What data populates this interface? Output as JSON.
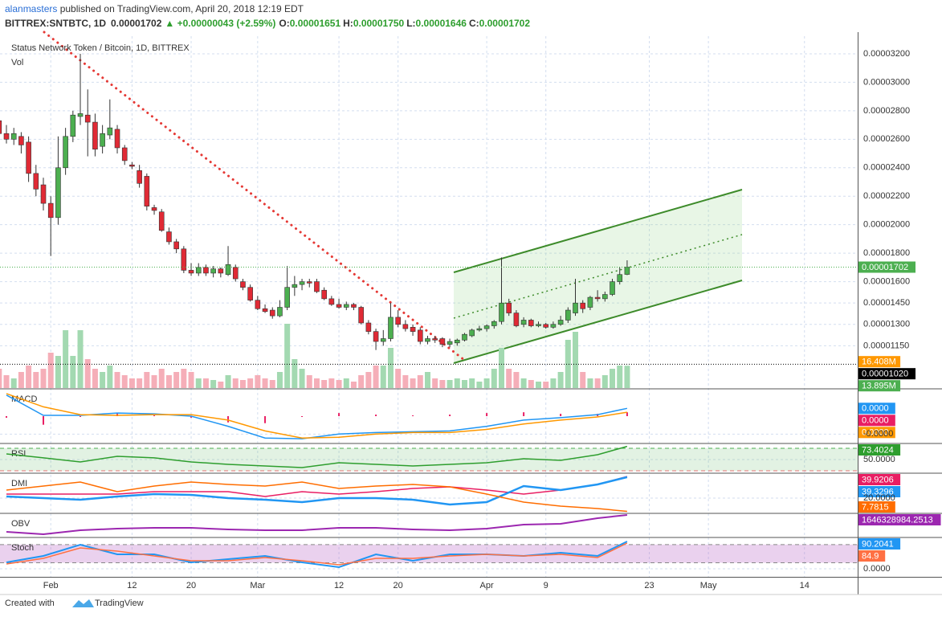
{
  "header": {
    "author": "alanmasters",
    "published": " published on TradingView.com, April 20, 2018 12:19 EDT",
    "symbol": "BITTREX:SNTBTC, 1D",
    "price": "0.00001702",
    "change": "▲ +0.00000043 (+2.59%)",
    "ohlc": [
      {
        "label": "O:",
        "value": "0.00001651"
      },
      {
        "label": "H:",
        "value": "0.00001750"
      },
      {
        "label": "L:",
        "value": "0.00001646"
      },
      {
        "label": "C:",
        "value": "0.00001702"
      }
    ]
  },
  "footer": {
    "text": "Created with",
    "brand": "TradingView"
  },
  "chart_data": [
    {
      "type": "candlestick",
      "title": "Status Network Token / Bitcoin, 1D, BITTREX",
      "up_color": "#4caf50",
      "down_color": "#e02a35",
      "x": [
        -7,
        -6,
        -5,
        -4,
        -3,
        -2,
        -1,
        0,
        1,
        2,
        3,
        4,
        5,
        6,
        7,
        8,
        9,
        10,
        11,
        12,
        13,
        14,
        15,
        16,
        17,
        18,
        19,
        20,
        21,
        22,
        23,
        24,
        25,
        26,
        27,
        28,
        29,
        30,
        31,
        32,
        33,
        34,
        35,
        36,
        37,
        38,
        39,
        40,
        41,
        42,
        43,
        44,
        45,
        46,
        47,
        48,
        49,
        50,
        51,
        52,
        53,
        54,
        55,
        56,
        57,
        58,
        59,
        60,
        61,
        62,
        63,
        64,
        65,
        66,
        67,
        68,
        69,
        70,
        71,
        72,
        73,
        74,
        75,
        76,
        77,
        78
      ],
      "open": [
        2.73e-05,
        2.64e-05,
        2.6e-05,
        2.62e-05,
        2.58e-05,
        2.36e-05,
        2.28e-05,
        2.15e-05,
        2.05e-05,
        2.4e-05,
        2.62e-05,
        2.76e-05,
        2.77e-05,
        2.72e-05,
        2.55e-05,
        2.63e-05,
        2.67e-05,
        2.54e-05,
        2.42e-05,
        2.38e-05,
        2.34e-05,
        2.12e-05,
        2.09e-05,
        1.95e-05,
        1.88e-05,
        1.83e-05,
        1.68e-05,
        1.66e-05,
        1.7e-05,
        1.66e-05,
        1.69e-05,
        1.65e-05,
        1.7e-05,
        1.6e-05,
        1.56e-05,
        1.47e-05,
        1.41e-05,
        1.4e-05,
        1.36e-05,
        1.42e-05,
        1.56e-05,
        1.58e-05,
        1.6e-05,
        1.6e-05,
        1.54e-05,
        1.48e-05,
        1.44e-05,
        1.42e-05,
        1.44e-05,
        1.42e-05,
        1.31e-05,
        1.25e-05,
        1.18e-05,
        1.2e-05,
        1.35e-05,
        1.3e-05,
        1.28e-05,
        1.26e-05,
        1.18e-05,
        1.2e-05,
        1.2e-05,
        1.16e-05,
        1.17e-05,
        1.19e-05,
        1.22e-05,
        1.26e-05,
        1.27e-05,
        1.29e-05,
        1.32e-05,
        1.45e-05,
        1.38e-05,
        1.3e-05,
        1.33e-05,
        1.29e-05,
        1.3e-05,
        1.28e-05,
        1.3e-05,
        1.33e-05,
        1.38e-05,
        1.45e-05,
        1.42e-05,
        1.49e-05,
        1.48e-05,
        1.51e-05,
        1.6e-05,
        1.651e-05
      ],
      "high": [
        2.79e-05,
        2.7e-05,
        2.68e-05,
        2.65e-05,
        2.62e-05,
        2.42e-05,
        2.33e-05,
        2.2e-05,
        2.62e-05,
        2.68e-05,
        2.8e-05,
        3.2e-05,
        2.95e-05,
        2.78e-05,
        2.7e-05,
        2.88e-05,
        2.7e-05,
        2.56e-05,
        2.44e-05,
        2.42e-05,
        2.36e-05,
        2.14e-05,
        2.11e-05,
        1.98e-05,
        1.9e-05,
        1.85e-05,
        1.73e-05,
        1.73e-05,
        1.72e-05,
        1.71e-05,
        1.7e-05,
        1.85e-05,
        1.72e-05,
        1.62e-05,
        1.58e-05,
        1.5e-05,
        1.44e-05,
        1.42e-05,
        1.47e-05,
        1.71e-05,
        1.64e-05,
        1.62e-05,
        1.62e-05,
        1.62e-05,
        1.56e-05,
        1.5e-05,
        1.48e-05,
        1.46e-05,
        1.45e-05,
        1.43e-05,
        1.33e-05,
        1.27e-05,
        1.26e-05,
        1.45e-05,
        1.4e-05,
        1.33e-05,
        1.3e-05,
        1.28e-05,
        1.22e-05,
        1.22e-05,
        1.21e-05,
        1.2e-05,
        1.2e-05,
        1.24e-05,
        1.27e-05,
        1.29e-05,
        1.3e-05,
        1.33e-05,
        1.77e-05,
        1.48e-05,
        1.4e-05,
        1.35e-05,
        1.34e-05,
        1.32e-05,
        1.31e-05,
        1.32e-05,
        1.36e-05,
        1.42e-05,
        1.62e-05,
        1.47e-05,
        1.5e-05,
        1.54e-05,
        1.53e-05,
        1.62e-05,
        1.7e-05,
        1.75e-05
      ],
      "low": [
        2.54e-05,
        2.57e-05,
        2.56e-05,
        2.5e-05,
        2.3e-05,
        2.2e-05,
        2.1e-05,
        1.78e-05,
        2e-05,
        2.35e-05,
        2.58e-05,
        2.7e-05,
        2.48e-05,
        2.48e-05,
        2.5e-05,
        2.6e-05,
        2.5e-05,
        2.42e-05,
        2.39e-05,
        2.26e-05,
        2.1e-05,
        2.07e-05,
        1.95e-05,
        1.86e-05,
        1.8e-05,
        1.66e-05,
        1.64e-05,
        1.64e-05,
        1.64e-05,
        1.63e-05,
        1.63e-05,
        1.64e-05,
        1.6e-05,
        1.54e-05,
        1.46e-05,
        1.4e-05,
        1.38e-05,
        1.34e-05,
        1.35e-05,
        1.4e-05,
        1.5e-05,
        1.54e-05,
        1.56e-05,
        1.52e-05,
        1.47e-05,
        1.43e-05,
        1.41e-05,
        1.4e-05,
        1.4e-05,
        1.3e-05,
        1.23e-05,
        1.12e-05,
        1.15e-05,
        1.18e-05,
        1.28e-05,
        1.25e-05,
        1.22e-05,
        1.16e-05,
        1.16e-05,
        1.17e-05,
        1.14e-05,
        1.14e-05,
        1.15e-05,
        1.18e-05,
        1.21e-05,
        1.25e-05,
        1.25e-05,
        1.27e-05,
        1.3e-05,
        1.36e-05,
        1.28e-05,
        1.28e-05,
        1.28e-05,
        1.28e-05,
        1.27e-05,
        1.27e-05,
        1.29e-05,
        1.31e-05,
        1.36e-05,
        1.38e-05,
        1.4e-05,
        1.46e-05,
        1.46e-05,
        1.5e-05,
        1.58e-05,
        1.646e-05
      ],
      "close": [
        2.64e-05,
        2.6e-05,
        2.64e-05,
        2.56e-05,
        2.36e-05,
        2.25e-05,
        2.15e-05,
        2.05e-05,
        2.4e-05,
        2.62e-05,
        2.77e-05,
        2.78e-05,
        2.72e-05,
        2.53e-05,
        2.64e-05,
        2.68e-05,
        2.54e-05,
        2.45e-05,
        2.41e-05,
        2.29e-05,
        2.13e-05,
        2.1e-05,
        1.96e-05,
        1.88e-05,
        1.83e-05,
        1.68e-05,
        1.66e-05,
        1.7e-05,
        1.66e-05,
        1.69e-05,
        1.66e-05,
        1.72e-05,
        1.62e-05,
        1.56e-05,
        1.47e-05,
        1.41e-05,
        1.39e-05,
        1.36e-05,
        1.42e-05,
        1.56e-05,
        1.58e-05,
        1.6e-05,
        1.59e-05,
        1.53e-05,
        1.48e-05,
        1.44e-05,
        1.42e-05,
        1.44e-05,
        1.42e-05,
        1.31e-05,
        1.25e-05,
        1.18e-05,
        1.2e-05,
        1.35e-05,
        1.3e-05,
        1.27e-05,
        1.25e-05,
        1.18e-05,
        1.2e-05,
        1.19e-05,
        1.16e-05,
        1.18e-05,
        1.19e-05,
        1.23e-05,
        1.26e-05,
        1.27e-05,
        1.29e-05,
        1.32e-05,
        1.45e-05,
        1.38e-05,
        1.29e-05,
        1.33e-05,
        1.29e-05,
        1.3e-05,
        1.28e-05,
        1.3e-05,
        1.33e-05,
        1.4e-05,
        1.45e-05,
        1.41e-05,
        1.49e-05,
        1.48e-05,
        1.51e-05,
        1.6e-05,
        1.65e-05,
        1.702e-05
      ],
      "ylim": [
        8.53e-06,
        3.324e-05
      ],
      "yticks": [
        {
          "value": 3.2e-05,
          "label": "0.00003200"
        },
        {
          "value": 3e-05,
          "label": "0.00003000"
        },
        {
          "value": 2.8e-05,
          "label": "0.00002800"
        },
        {
          "value": 2.6e-05,
          "label": "0.00002600"
        },
        {
          "value": 2.4e-05,
          "label": "0.00002400"
        },
        {
          "value": 2.2e-05,
          "label": "0.00002200"
        },
        {
          "value": 2e-05,
          "label": "0.00002000"
        },
        {
          "value": 1.8e-05,
          "label": "0.00001800"
        },
        {
          "value": 1.6e-05,
          "label": "0.00001600"
        },
        {
          "value": 1.45e-05,
          "label": "0.00001450"
        },
        {
          "value": 1.3e-05,
          "label": "0.00001300"
        },
        {
          "value": 1.15e-05,
          "label": "0.00001150"
        }
      ],
      "xlim": [
        -6.87,
        109.2
      ],
      "xticks": [
        {
          "value": 0,
          "label": "Feb"
        },
        {
          "value": 11,
          "label": "12"
        },
        {
          "value": 19,
          "label": "20"
        },
        {
          "value": 28,
          "label": "Mar"
        },
        {
          "value": 39,
          "label": "12"
        },
        {
          "value": 47,
          "label": "20"
        },
        {
          "value": 59,
          "label": "Apr"
        },
        {
          "value": 67,
          "label": "9"
        },
        {
          "value": 81,
          "label": "23"
        },
        {
          "value": 89,
          "label": "May"
        },
        {
          "value": 102,
          "label": "14"
        }
      ],
      "grid": true,
      "last_price": {
        "value": 1.702e-05,
        "label": "0.00001702",
        "color": "#4caf50"
      },
      "crosshair": {
        "value": 1.02e-05,
        "label": "0.00001020",
        "color": "#000000"
      },
      "volume": {
        "name": "Vol",
        "ylim": [
          0,
          219
        ],
        "up_color": "#a3d9b1",
        "down_color": "#f5aeb8",
        "values": [
          12,
          8,
          6,
          10,
          14,
          10,
          12,
          22,
          20,
          36,
          20,
          36,
          18,
          12,
          10,
          14,
          10,
          8,
          6,
          6,
          10,
          8,
          12,
          8,
          10,
          12,
          10,
          6,
          6,
          5,
          4,
          8,
          6,
          5,
          6,
          8,
          6,
          5,
          10,
          40,
          18,
          12,
          8,
          6,
          5,
          6,
          5,
          6,
          4,
          8,
          10,
          14,
          14,
          25,
          12,
          8,
          6,
          8,
          10,
          6,
          5,
          5,
          6,
          5,
          6,
          4,
          6,
          12,
          25,
          12,
          10,
          6,
          5,
          4,
          4,
          6,
          10,
          30,
          35,
          10,
          6,
          6,
          8,
          12,
          14,
          13.895
        ],
        "last_label": "13.895M",
        "last_color": "#4caf50",
        "ma": {
          "value": 16.408,
          "label": "16.408M",
          "color": "#ff9800"
        }
      }
    },
    {
      "type": "line",
      "title": "MACD",
      "x": [
        -6,
        -1,
        4,
        9,
        14,
        19,
        24,
        29,
        34,
        39,
        44,
        49,
        54,
        59,
        64,
        69,
        74,
        78
      ],
      "ylim": [
        -6.8e-07,
        6.8e-07
      ],
      "yticks": [
        {
          "value": -4.6e-07,
          "label": "-0.0000"
        }
      ],
      "histogram": {
        "color": "#e91e63",
        "tag": "0.0000",
        "values": [
          -4e-08,
          -2.2e-07,
          -2e-08,
          6e-08,
          2e-08,
          -4e-08,
          -1.6e-07,
          -1.8e-07,
          -2e-08,
          8e-08,
          4e-08,
          2e-08,
          4e-08,
          8e-08,
          1e-07,
          6e-08,
          6e-08,
          1e-07
        ]
      },
      "series": [
        {
          "color": "#2196f3",
          "tag": "0.0000",
          "values": [
            5.4e-07,
            2e-08,
            2e-08,
            8e-08,
            6e-08,
            0,
            -2.6e-07,
            -5.6e-07,
            -5.8e-07,
            -4.6e-07,
            -4.2e-07,
            -4e-07,
            -3.8e-07,
            -2.6e-07,
            -1e-07,
            -4e-08,
            4e-08,
            2e-07
          ]
        },
        {
          "color": "#ff9800",
          "tag": "0.0000",
          "values": [
            5.8e-07,
            2.4e-07,
            4e-08,
            2e-08,
            4e-08,
            4e-08,
            -1e-07,
            -3.8e-07,
            -5.6e-07,
            -5.4e-07,
            -4.6e-07,
            -4.2e-07,
            -4.2e-07,
            -3.4e-07,
            -2e-07,
            -1e-07,
            -2e-08,
            1e-07
          ]
        }
      ]
    },
    {
      "type": "line",
      "title": "RSI",
      "x": [
        -6,
        -1,
        4,
        9,
        14,
        19,
        24,
        29,
        34,
        39,
        44,
        49,
        54,
        59,
        64,
        69,
        74,
        78
      ],
      "ylim": [
        27.1,
        77.1
      ],
      "yticks": [
        {
          "value": 50,
          "label": "50.0000"
        }
      ],
      "levels": [
        30,
        70
      ],
      "band_color": "rgba(76,175,80,0.16)",
      "level_colors": [
        "#e57373",
        "#4caf50"
      ],
      "series": [
        {
          "color": "#2e9e2e",
          "tag": "73.4024",
          "values": [
            60,
            52.9,
            45.7,
            55.7,
            52.9,
            45.7,
            41.4,
            38.6,
            35.7,
            44.3,
            41.4,
            38.6,
            41.4,
            44.3,
            51.4,
            48.6,
            58.6,
            73.4024
          ]
        }
      ]
    },
    {
      "type": "line",
      "title": "DMI",
      "x": [
        -6,
        -1,
        4,
        9,
        14,
        19,
        24,
        29,
        34,
        39,
        44,
        49,
        54,
        59,
        64,
        69,
        74,
        78
      ],
      "ylim": [
        6.7,
        42.2
      ],
      "yticks": [
        {
          "value": 20,
          "label": "20.0000"
        }
      ],
      "series": [
        {
          "color": "#e91e63",
          "tag": "39.9206",
          "values": [
            23.7,
            23.7,
            23.7,
            23.7,
            25.9,
            25.9,
            25.9,
            21.5,
            25.9,
            23.7,
            25.9,
            28.9,
            30.4,
            27.4,
            23.7,
            27.4,
            32.6,
            39.9206
          ]
        },
        {
          "color": "#2196f3",
          "tag": "39.3296",
          "width": 2.5,
          "values": [
            21.5,
            20,
            18.5,
            21.5,
            23.7,
            23,
            20,
            18.5,
            16.3,
            20,
            20,
            18.5,
            14.1,
            16.3,
            31.1,
            27.4,
            32.6,
            39.3296
          ]
        },
        {
          "color": "#ff6d00",
          "tag": "7.7815",
          "values": [
            27.4,
            31.1,
            34.8,
            25.9,
            31.1,
            34.8,
            32.6,
            31.1,
            34.8,
            28.9,
            31.1,
            32.6,
            30.4,
            23.7,
            16.3,
            12.6,
            10.4,
            7.7815
          ]
        }
      ]
    },
    {
      "type": "line",
      "title": "OBV",
      "x": [
        -6,
        -1,
        4,
        9,
        14,
        19,
        24,
        29,
        34,
        39,
        44,
        49,
        54,
        59,
        64,
        69,
        74,
        78
      ],
      "ylim": [
        1106000000,
        1666000000
      ],
      "yticks": [],
      "series": [
        {
          "color": "#9c27b0",
          "width": 2,
          "values": [
            1226000000,
            1166000000,
            1266000000,
            1306000000,
            1326000000,
            1326000000,
            1286000000,
            1266000000,
            1266000000,
            1326000000,
            1326000000,
            1286000000,
            1266000000,
            1306000000,
            1406000000,
            1426000000,
            1566000000,
            1646328984.2513
          ]
        }
      ]
    },
    {
      "type": "line",
      "title": "Stoch",
      "x": [
        -6,
        -1,
        4,
        9,
        14,
        19,
        24,
        29,
        34,
        39,
        44,
        49,
        54,
        59,
        64,
        69,
        74,
        78
      ],
      "ylim": [
        -26.5,
        100.8
      ],
      "yticks": [
        {
          "value": 0,
          "label": "0.0000"
        }
      ],
      "levels": [
        20,
        80
      ],
      "band_color": "rgba(186,104,200,0.3)",
      "level_colors": [
        "#888888",
        "#888888"
      ],
      "series": [
        {
          "color": "#2196f3",
          "tag": "90.2041",
          "width": 2,
          "values": [
            21.2,
            42.4,
            79.6,
            47.7,
            47.7,
            21.2,
            31.8,
            42.4,
            21.2,
            5.3,
            47.7,
            26.5,
            47.7,
            47.7,
            42.4,
            53,
            42.4,
            90.2041
          ]
        },
        {
          "color": "#ff7043",
          "values": [
            15.9,
            34.5,
            69,
            58.4,
            42.4,
            26.5,
            26.5,
            37.1,
            26.5,
            13.3,
            34.5,
            34.5,
            42.4,
            47.7,
            42.4,
            47.7,
            37.1,
            84.9
          ]
        }
      ]
    }
  ]
}
